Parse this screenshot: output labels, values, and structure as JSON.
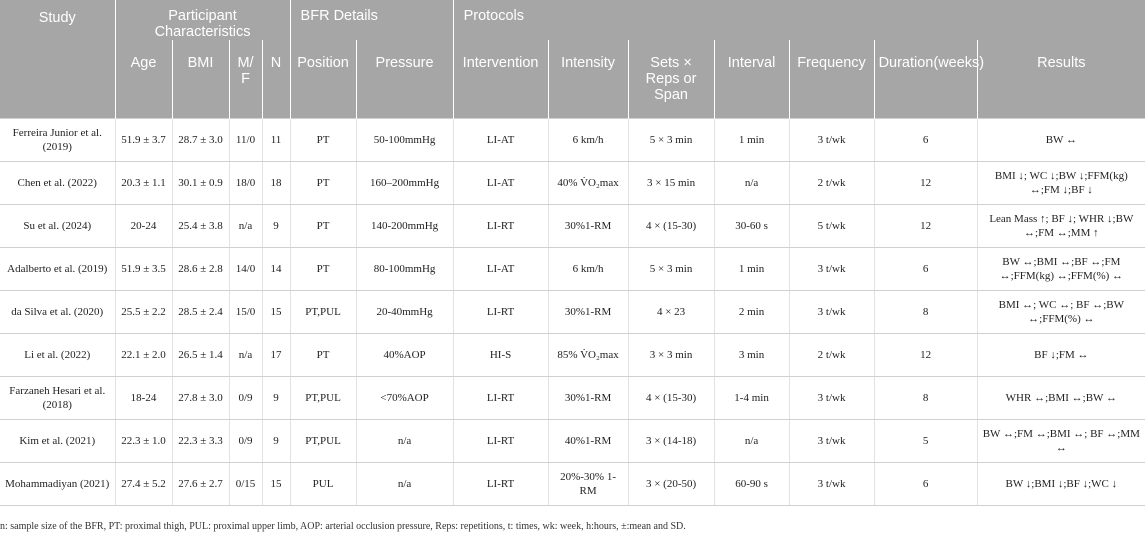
{
  "header": {
    "group_row": {
      "study": "Study",
      "participant": "Participant Characteristics",
      "bfr": "BFR Details",
      "protocols": "Protocols"
    },
    "columns": {
      "age": "Age",
      "bmi": "BMI",
      "mf": "M/ F",
      "n": "N",
      "position": "Position",
      "pressure": "Pressure",
      "intervention": "Intervention",
      "intensity": "Intensity",
      "sets": "Sets × Reps or Span",
      "interval": "Interval",
      "frequency": "Frequency",
      "duration": "Duration(weeks)",
      "results": "Results"
    }
  },
  "rows": [
    {
      "study": "Ferreira Junior et al. (2019)",
      "age": "51.9 ± 3.7",
      "bmi": "28.7 ± 3.0",
      "mf": "11/0",
      "n": "11",
      "position": "PT",
      "pressure": "50-100mmHg",
      "intervention": "LI-AT",
      "intensity": "6 km/h",
      "sets": "5 × 3 min",
      "interval": "1 min",
      "frequency": "3 t/wk",
      "duration": "6",
      "results": "BW ↔"
    },
    {
      "study": "Chen et al. (2022)",
      "age": "20.3 ± 1.1",
      "bmi": "30.1 ± 0.9",
      "mf": "18/0",
      "n": "18",
      "position": "PT",
      "pressure": "160–200mmHg",
      "intervention": "LI-AT",
      "intensity": "40% V̇O₂max",
      "sets": "3 × 15 min",
      "interval": "n/a",
      "frequency": "2 t/wk",
      "duration": "12",
      "results": "BMI ↓; WC ↓;BW ↓;FFM(kg) ↔;FM ↓;BF ↓"
    },
    {
      "study": "Su et al. (2024)",
      "age": "20-24",
      "bmi": "25.4 ± 3.8",
      "mf": "n/a",
      "n": "9",
      "position": "PT",
      "pressure": "140-200mmHg",
      "intervention": "LI-RT",
      "intensity": "30%1-RM",
      "sets": "4 × (15-30)",
      "interval": "30-60 s",
      "frequency": "5 t/wk",
      "duration": "12",
      "results": "Lean Mass ↑; BF ↓; WHR ↓;BW ↔;FM ↔;MM ↑"
    },
    {
      "study": "Adalberto et al. (2019)",
      "age": "51.9 ± 3.5",
      "bmi": "28.6 ± 2.8",
      "mf": "14/0",
      "n": "14",
      "position": "PT",
      "pressure": "80-100mmHg",
      "intervention": "LI-AT",
      "intensity": "6 km/h",
      "sets": "5 × 3 min",
      "interval": "1 min",
      "frequency": "3 t/wk",
      "duration": "6",
      "results": "BW ↔;BMI ↔;BF ↔;FM ↔;FFM(kg) ↔;FFM(%) ↔"
    },
    {
      "study": "da Silva et al. (2020)",
      "age": "25.5 ± 2.2",
      "bmi": "28.5 ± 2.4",
      "mf": "15/0",
      "n": "15",
      "position": "PT,PUL",
      "pressure": "20-40mmHg",
      "intervention": "LI-RT",
      "intensity": "30%1-RM",
      "sets": "4 × 23",
      "interval": "2 min",
      "frequency": "3 t/wk",
      "duration": "8",
      "results": "BMI ↔; WC ↔; BF ↔;BW ↔;FFM(%) ↔"
    },
    {
      "study": "Li et al. (2022)",
      "age": "22.1 ± 2.0",
      "bmi": "26.5 ± 1.4",
      "mf": "n/a",
      "n": "17",
      "position": "PT",
      "pressure": "40%AOP",
      "intervention": "HI-S",
      "intensity": "85% V̇O₂max",
      "sets": "3 × 3 min",
      "interval": "3 min",
      "frequency": "2 t/wk",
      "duration": "12",
      "results": "BF ↓;FM ↔"
    },
    {
      "study": "Farzaneh Hesari et al. (2018)",
      "age": "18-24",
      "bmi": "27.8 ± 3.0",
      "mf": "0/9",
      "n": "9",
      "position": "PT,PUL",
      "pressure": "<70%AOP",
      "intervention": "LI-RT",
      "intensity": "30%1-RM",
      "sets": "4 × (15-30)",
      "interval": "1-4 min",
      "frequency": "3 t/wk",
      "duration": "8",
      "results": "WHR ↔;BMI ↔;BW ↔"
    },
    {
      "study": "Kim et al. (2021)",
      "age": "22.3 ± 1.0",
      "bmi": "22.3 ± 3.3",
      "mf": "0/9",
      "n": "9",
      "position": "PT,PUL",
      "pressure": "n/a",
      "intervention": "LI-RT",
      "intensity": "40%1-RM",
      "sets": "3 × (14-18)",
      "interval": "n/a",
      "frequency": "3 t/wk",
      "duration": "5",
      "results": "BW ↔;FM ↔;BMI ↔; BF ↔;MM ↔"
    },
    {
      "study": "Mohammadiyan (2021)",
      "age": "27.4 ± 5.2",
      "bmi": "27.6 ± 2.7",
      "mf": "0/15",
      "n": "15",
      "position": "PUL",
      "pressure": "n/a",
      "intervention": "LI-RT",
      "intensity": "20%-30% 1-RM",
      "sets": "3 × (20-50)",
      "interval": "60-90 s",
      "frequency": "3 t/wk",
      "duration": "6",
      "results": "BW ↓;BMI ↓;BF ↓;WC ↓"
    }
  ],
  "footnote": "n: sample size of the BFR, PT: proximal thigh, PUL: proximal upper limb, AOP: arterial occlusion pressure, Reps: repetitions, t: times, wk: week, h:hours, ±:mean and SD."
}
